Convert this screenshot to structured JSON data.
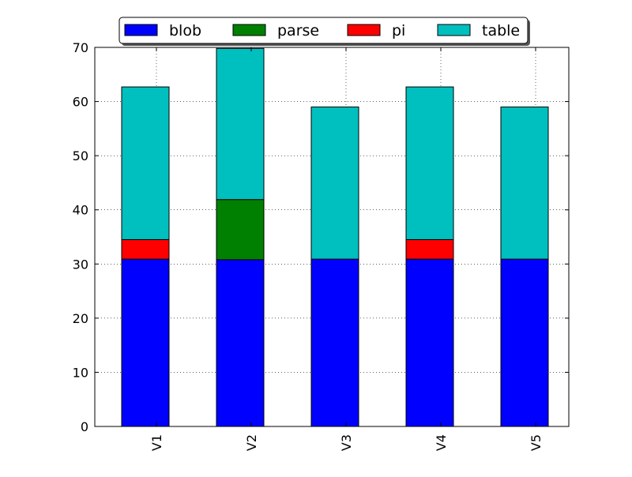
{
  "chart_data": {
    "type": "bar",
    "stacked": true,
    "categories": [
      "V1",
      "V2",
      "V3",
      "V4",
      "V5"
    ],
    "series": [
      {
        "name": "blob",
        "color": "#0000ff",
        "values": [
          30.9,
          30.8,
          30.9,
          30.9,
          30.9
        ]
      },
      {
        "name": "parse",
        "color": "#008000",
        "values": [
          0,
          11.1,
          0,
          0,
          0
        ]
      },
      {
        "name": "pi",
        "color": "#ff0000",
        "values": [
          3.6,
          0,
          0,
          3.6,
          0
        ]
      },
      {
        "name": "table",
        "color": "#00bfbf",
        "values": [
          28.2,
          27.9,
          28.1,
          28.2,
          28.1
        ]
      }
    ],
    "title": "",
    "xlabel": "",
    "ylabel": "",
    "ylim": [
      0,
      70
    ],
    "yticks": [
      0,
      10,
      20,
      30,
      40,
      50,
      60,
      70
    ],
    "grid": true,
    "grid_style": "dotted",
    "xtick_rotation": "vertical",
    "legend": {
      "placement": "top-center-outside",
      "columns": 4
    }
  }
}
